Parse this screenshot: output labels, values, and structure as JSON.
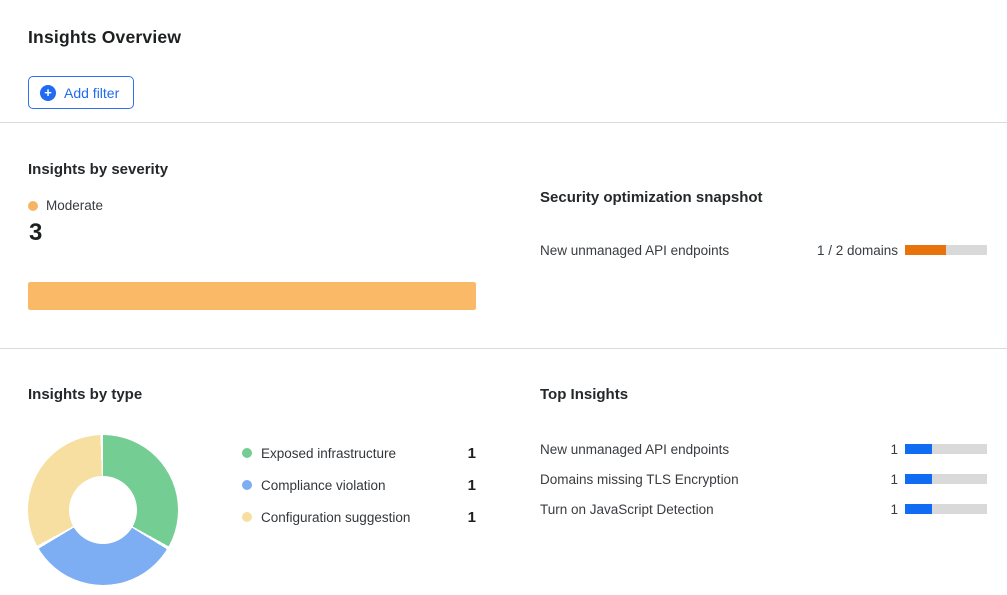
{
  "header": {
    "title": "Insights Overview",
    "add_filter": {
      "label": "Add filter",
      "icon": "plus-circle-icon",
      "plus_glyph": "+"
    }
  },
  "severity": {
    "heading": "Insights by severity",
    "legend": {
      "label": "Moderate",
      "color": "#f6b563"
    },
    "count": "3",
    "bar": {
      "fill_pct": 100,
      "color": "#f9b966"
    }
  },
  "snapshot": {
    "heading": "Security optimization snapshot",
    "rows": [
      {
        "label": "New unmanaged API endpoints",
        "value": "1 / 2 domains",
        "fill_pct": 50
      }
    ],
    "bar_color": "#e8730d"
  },
  "insights_by_type": {
    "heading": "Insights by type",
    "legend": [
      {
        "label": "Exposed infrastructure",
        "value": "1",
        "color": "#74cd92"
      },
      {
        "label": "Compliance violation",
        "value": "1",
        "color": "#7dadf2"
      },
      {
        "label": "Configuration suggestion",
        "value": "1",
        "color": "#f6dfa0"
      }
    ]
  },
  "top_insights": {
    "heading": "Top Insights",
    "rows": [
      {
        "label": "New unmanaged API endpoints",
        "value": "1",
        "fill_pct": 33
      },
      {
        "label": "Domains missing TLS Encryption",
        "value": "1",
        "fill_pct": 33
      },
      {
        "label": "Turn on JavaScript Detection",
        "value": "1",
        "fill_pct": 33
      }
    ],
    "bar_color": "#0f6cf3"
  },
  "colors": {
    "accent_blue": "#1f6bf1",
    "progress_track_gray": "#d9d9d9",
    "divider_gray": "#d8dadb",
    "severity_orange": "#f9b966",
    "snapshot_orange": "#e8730d",
    "bar_blue": "#0f6cf3",
    "donut_green": "#74cd92",
    "donut_blue": "#7dadf2",
    "donut_yellow": "#f6dfa0"
  },
  "chart_data": [
    {
      "type": "bar",
      "title": "Insights by severity",
      "orientation": "horizontal",
      "categories": [
        "Moderate"
      ],
      "values": [
        3
      ],
      "colors": [
        "#f9b966"
      ],
      "legend_position": "above",
      "grid": false
    },
    {
      "type": "table",
      "title": "Security optimization snapshot",
      "rows": [
        {
          "label": "New unmanaged API endpoints",
          "value": "1 / 2 domains",
          "progress_fraction": 0.5,
          "bar_color": "#e8730d"
        }
      ]
    },
    {
      "type": "pie",
      "subtype": "donut",
      "title": "Insights by type",
      "labels": [
        "Exposed infrastructure",
        "Compliance violation",
        "Configuration suggestion"
      ],
      "values": [
        1,
        1,
        1
      ],
      "colors": [
        "#74cd92",
        "#7dadf2",
        "#f6dfa0"
      ],
      "start_angle_deg": 0,
      "direction": "clockwise",
      "legend_position": "right"
    },
    {
      "type": "bar",
      "title": "Top Insights",
      "orientation": "horizontal",
      "categories": [
        "New unmanaged API endpoints",
        "Domains missing TLS Encryption",
        "Turn on JavaScript Detection"
      ],
      "values": [
        1,
        1,
        1
      ],
      "xlim": [
        0,
        3
      ],
      "colors": [
        "#0f6cf3",
        "#0f6cf3",
        "#0f6cf3"
      ],
      "grid": false
    }
  ]
}
